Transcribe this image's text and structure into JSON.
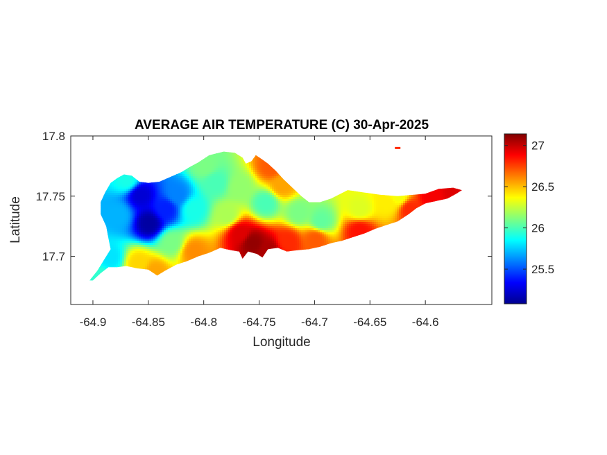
{
  "chart_data": {
    "type": "heatmap",
    "title": "AVERAGE AIR TEMPERATURE (C) 30-Apr-2025",
    "xlabel": "Longitude",
    "ylabel": "Latitude",
    "xlim": [
      -64.92,
      -64.54
    ],
    "ylim": [
      17.66,
      17.8
    ],
    "xticks": [
      -64.9,
      -64.85,
      -64.8,
      -64.75,
      -64.7,
      -64.65,
      -64.6
    ],
    "xtick_labels": [
      "-64.9",
      "-64.85",
      "-64.8",
      "-64.75",
      "-64.7",
      "-64.65",
      "-64.6"
    ],
    "yticks": [
      17.7,
      17.75,
      17.8
    ],
    "ytick_labels": [
      "17.7",
      "17.75",
      "17.8"
    ],
    "colormap": "jet",
    "clim": [
      25.08,
      27.14
    ],
    "colorbar_ticks": [
      25.5,
      26,
      26.5,
      27
    ],
    "colorbar_tick_labels": [
      "25.5",
      "26",
      "26.5",
      "27"
    ],
    "island_outline": [
      [
        -64.9,
        17.68
      ],
      [
        -64.893,
        17.686
      ],
      [
        -64.886,
        17.691
      ],
      [
        -64.878,
        17.691
      ],
      [
        -64.87,
        17.692
      ],
      [
        -64.86,
        17.69
      ],
      [
        -64.85,
        17.689
      ],
      [
        -64.842,
        17.684
      ],
      [
        -64.835,
        17.688
      ],
      [
        -64.825,
        17.693
      ],
      [
        -64.815,
        17.696
      ],
      [
        -64.805,
        17.7
      ],
      [
        -64.795,
        17.703
      ],
      [
        -64.785,
        17.707
      ],
      [
        -64.775,
        17.705
      ],
      [
        -64.768,
        17.704
      ],
      [
        -64.765,
        17.698
      ],
      [
        -64.76,
        17.704
      ],
      [
        -64.752,
        17.702
      ],
      [
        -64.747,
        17.699
      ],
      [
        -64.742,
        17.706
      ],
      [
        -64.733,
        17.707
      ],
      [
        -64.725,
        17.704
      ],
      [
        -64.716,
        17.705
      ],
      [
        -64.705,
        17.706
      ],
      [
        -64.695,
        17.708
      ],
      [
        -64.685,
        17.711
      ],
      [
        -64.675,
        17.713
      ],
      [
        -64.665,
        17.716
      ],
      [
        -64.655,
        17.719
      ],
      [
        -64.645,
        17.723
      ],
      [
        -64.635,
        17.726
      ],
      [
        -64.625,
        17.729
      ],
      [
        -64.615,
        17.735
      ],
      [
        -64.608,
        17.74
      ],
      [
        -64.6,
        17.744
      ],
      [
        -64.59,
        17.746
      ],
      [
        -64.58,
        17.748
      ],
      [
        -64.572,
        17.752
      ],
      [
        -64.567,
        17.755
      ],
      [
        -64.575,
        17.757
      ],
      [
        -64.588,
        17.756
      ],
      [
        -64.6,
        17.752
      ],
      [
        -64.612,
        17.751
      ],
      [
        -64.625,
        17.75
      ],
      [
        -64.64,
        17.751
      ],
      [
        -64.655,
        17.753
      ],
      [
        -64.67,
        17.755
      ],
      [
        -64.685,
        17.748
      ],
      [
        -64.695,
        17.745
      ],
      [
        -64.705,
        17.745
      ],
      [
        -64.712,
        17.75
      ],
      [
        -64.72,
        17.757
      ],
      [
        -64.728,
        17.764
      ],
      [
        -64.735,
        17.771
      ],
      [
        -64.742,
        17.777
      ],
      [
        -64.748,
        17.781
      ],
      [
        -64.753,
        17.784
      ],
      [
        -64.757,
        17.779
      ],
      [
        -64.762,
        17.777
      ],
      [
        -64.765,
        17.782
      ],
      [
        -64.772,
        17.786
      ],
      [
        -64.782,
        17.787
      ],
      [
        -64.795,
        17.784
      ],
      [
        -64.805,
        17.778
      ],
      [
        -64.813,
        17.774
      ],
      [
        -64.82,
        17.77
      ],
      [
        -64.83,
        17.766
      ],
      [
        -64.84,
        17.762
      ],
      [
        -64.85,
        17.761
      ],
      [
        -64.858,
        17.762
      ],
      [
        -64.865,
        17.767
      ],
      [
        -64.872,
        17.768
      ],
      [
        -64.878,
        17.765
      ],
      [
        -64.884,
        17.761
      ],
      [
        -64.889,
        17.753
      ],
      [
        -64.893,
        17.745
      ],
      [
        -64.893,
        17.735
      ],
      [
        -64.888,
        17.725
      ],
      [
        -64.886,
        17.715
      ],
      [
        -64.884,
        17.706
      ],
      [
        -64.89,
        17.697
      ],
      [
        -64.896,
        17.688
      ],
      [
        -64.903,
        17.68
      ]
    ],
    "temperature_samples": [
      {
        "lon": -64.85,
        "lat": 17.728,
        "temp": 25.15
      },
      {
        "lon": -64.858,
        "lat": 17.752,
        "temp": 25.25
      },
      {
        "lon": -64.835,
        "lat": 17.74,
        "temp": 25.4
      },
      {
        "lon": -64.825,
        "lat": 17.752,
        "temp": 25.6
      },
      {
        "lon": -64.878,
        "lat": 17.735,
        "temp": 25.7
      },
      {
        "lon": -64.885,
        "lat": 17.7,
        "temp": 25.8
      },
      {
        "lon": -64.81,
        "lat": 17.74,
        "temp": 25.9
      },
      {
        "lon": -64.79,
        "lat": 17.762,
        "temp": 26.0
      },
      {
        "lon": -64.768,
        "lat": 17.758,
        "temp": 26.15
      },
      {
        "lon": -64.745,
        "lat": 17.745,
        "temp": 26.0
      },
      {
        "lon": -64.715,
        "lat": 17.737,
        "temp": 26.1
      },
      {
        "lon": -64.695,
        "lat": 17.73,
        "temp": 26.05
      },
      {
        "lon": -64.66,
        "lat": 17.74,
        "temp": 26.3
      },
      {
        "lon": -64.635,
        "lat": 17.745,
        "temp": 26.4
      },
      {
        "lon": -64.625,
        "lat": 17.75,
        "temp": 26.35
      },
      {
        "lon": -64.86,
        "lat": 17.695,
        "temp": 26.45
      },
      {
        "lon": -64.81,
        "lat": 17.705,
        "temp": 26.6
      },
      {
        "lon": -64.768,
        "lat": 17.72,
        "temp": 26.95
      },
      {
        "lon": -64.757,
        "lat": 17.712,
        "temp": 27.1
      },
      {
        "lon": -64.742,
        "lat": 17.706,
        "temp": 27.05
      },
      {
        "lon": -64.725,
        "lat": 17.713,
        "temp": 26.8
      },
      {
        "lon": -64.7,
        "lat": 17.715,
        "temp": 26.7
      },
      {
        "lon": -64.66,
        "lat": 17.722,
        "temp": 26.85
      },
      {
        "lon": -64.615,
        "lat": 17.74,
        "temp": 26.8
      },
      {
        "lon": -64.595,
        "lat": 17.75,
        "temp": 26.9
      },
      {
        "lon": -64.575,
        "lat": 17.754,
        "temp": 26.95
      },
      {
        "lon": -64.74,
        "lat": 17.775,
        "temp": 26.7
      },
      {
        "lon": -64.73,
        "lat": 17.76,
        "temp": 26.55
      },
      {
        "lon": -64.8,
        "lat": 17.776,
        "temp": 26.1
      },
      {
        "lon": -64.78,
        "lat": 17.735,
        "temp": 26.2
      },
      {
        "lon": -64.87,
        "lat": 17.764,
        "temp": 25.9
      },
      {
        "lon": -64.895,
        "lat": 17.683,
        "temp": 25.95
      },
      {
        "lon": -64.845,
        "lat": 17.688,
        "temp": 26.55
      },
      {
        "lon": -64.83,
        "lat": 17.712,
        "temp": 26.1
      }
    ],
    "offshore_cay": {
      "lon": -64.625,
      "lat": 17.79,
      "temp": 26.8
    }
  }
}
